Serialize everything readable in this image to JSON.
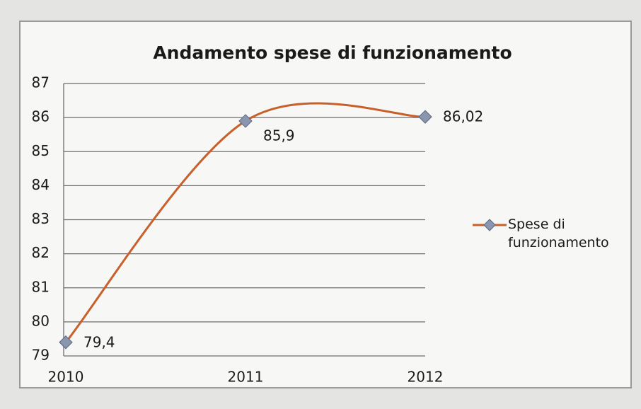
{
  "chart_data": {
    "type": "line",
    "title": "Andamento spese di funzionamento",
    "categories": [
      "2010",
      "2011",
      "2012"
    ],
    "series": [
      {
        "name": "Spese di funzionamento",
        "color": "#c8602c",
        "marker_color": "#8a96b0",
        "values": [
          79.4,
          85.9,
          86.02
        ],
        "value_labels": [
          "79,4",
          "85,9",
          "86,02"
        ]
      }
    ],
    "ylim": [
      79,
      87
    ],
    "yticks": [
      79,
      80,
      81,
      82,
      83,
      84,
      85,
      86,
      87
    ],
    "grid": true,
    "legend": "right",
    "smooth": true
  }
}
